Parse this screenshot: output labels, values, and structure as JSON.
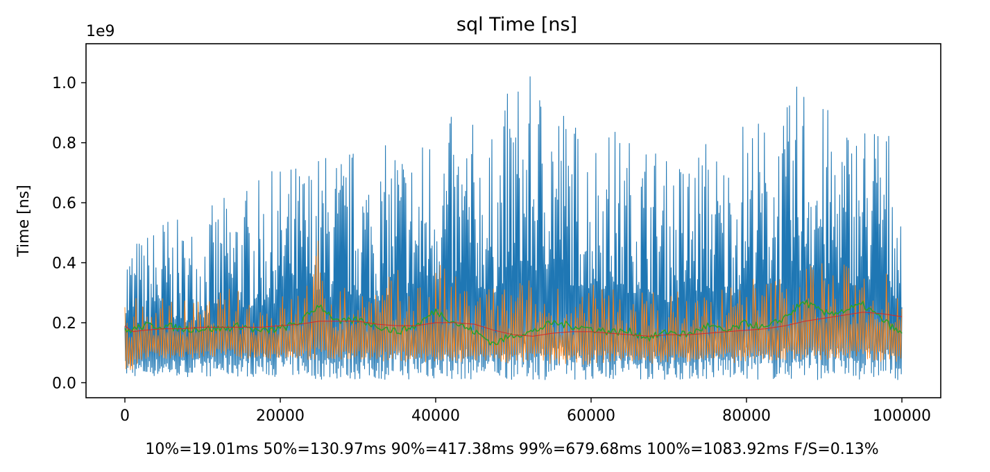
{
  "chart_data": {
    "type": "line",
    "title": "sql Time [ns]",
    "ylabel": "Time [ns]",
    "xlabel": "10%=19.01ms 50%=130.97ms 90%=417.38ms 99%=679.68ms 100%=1083.92ms F/S=0.13%",
    "y_offset_label": "1e9",
    "xlim": [
      -5000,
      105000
    ],
    "ylim": [
      -0.05,
      1.13
    ],
    "x_ticks": [
      0,
      20000,
      40000,
      60000,
      80000,
      100000
    ],
    "x_tick_labels": [
      "0",
      "20000",
      "40000",
      "60000",
      "80000",
      "100000"
    ],
    "y_ticks": [
      0.0,
      0.2,
      0.4,
      0.6,
      0.8,
      1.0
    ],
    "y_tick_labels": [
      "0.0",
      "0.2",
      "0.4",
      "0.6",
      "0.8",
      "1.0"
    ],
    "grid": false,
    "legend": "none",
    "series": [
      {
        "color": "#1f77b4",
        "x": [
          0,
          2500,
          5000,
          7500,
          10000,
          12500,
          15000,
          17500,
          20000,
          22500,
          25000,
          27500,
          30000,
          32500,
          35000,
          37500,
          40000,
          42500,
          45000,
          47500,
          50000,
          52500,
          55000,
          57500,
          60000,
          62500,
          65000,
          67500,
          70000,
          72500,
          75000,
          77500,
          80000,
          82500,
          85000,
          87500,
          90000,
          92500,
          95000,
          97500,
          100000
        ],
        "low": [
          0.02,
          0.02,
          0.02,
          0.02,
          0.02,
          0.02,
          0.02,
          0.02,
          0.02,
          0.02,
          0.01,
          0.01,
          0.01,
          0.01,
          0.01,
          0.01,
          0.01,
          0.01,
          0.01,
          0.01,
          0.01,
          0.01,
          0.01,
          0.01,
          0.01,
          0.01,
          0.01,
          0.01,
          0.01,
          0.01,
          0.01,
          0.01,
          0.01,
          0.01,
          0.01,
          0.01,
          0.01,
          0.01,
          0.01,
          0.01,
          0.01
        ],
        "high": [
          0.5,
          0.5,
          0.58,
          0.53,
          0.57,
          0.62,
          0.66,
          0.68,
          0.73,
          0.75,
          0.78,
          0.79,
          0.8,
          0.75,
          0.86,
          0.79,
          0.93,
          0.88,
          0.88,
          0.82,
          1.05,
          1.02,
          1.05,
          0.9,
          0.86,
          0.87,
          0.83,
          0.84,
          0.74,
          0.79,
          0.84,
          0.77,
          0.93,
          0.88,
          0.91,
          1.08,
          0.93,
          0.9,
          0.91,
          0.94,
          0.7
        ]
      },
      {
        "color": "#ff7f0e",
        "x": [
          0,
          2500,
          5000,
          7500,
          10000,
          12500,
          15000,
          17500,
          20000,
          22500,
          25000,
          27500,
          30000,
          32500,
          35000,
          37500,
          40000,
          42500,
          45000,
          47500,
          50000,
          52500,
          55000,
          57500,
          60000,
          62500,
          65000,
          67500,
          70000,
          72500,
          75000,
          77500,
          80000,
          82500,
          85000,
          87500,
          90000,
          92500,
          95000,
          97500,
          100000
        ],
        "low": [
          0.02,
          0.08,
          0.08,
          0.08,
          0.08,
          0.09,
          0.08,
          0.08,
          0.08,
          0.08,
          0.07,
          0.07,
          0.08,
          0.07,
          0.07,
          0.07,
          0.06,
          0.06,
          0.07,
          0.07,
          0.06,
          0.07,
          0.06,
          0.06,
          0.06,
          0.07,
          0.07,
          0.06,
          0.07,
          0.07,
          0.07,
          0.07,
          0.06,
          0.07,
          0.07,
          0.08,
          0.07,
          0.07,
          0.07,
          0.07,
          0.07
        ],
        "high": [
          0.26,
          0.3,
          0.3,
          0.28,
          0.28,
          0.32,
          0.31,
          0.3,
          0.3,
          0.33,
          0.5,
          0.34,
          0.35,
          0.34,
          0.38,
          0.36,
          0.42,
          0.36,
          0.34,
          0.33,
          0.36,
          0.35,
          0.36,
          0.32,
          0.33,
          0.34,
          0.33,
          0.32,
          0.3,
          0.33,
          0.32,
          0.34,
          0.38,
          0.35,
          0.38,
          0.42,
          0.44,
          0.4,
          0.43,
          0.44,
          0.4
        ]
      },
      {
        "color": "#2ca02c",
        "x": [
          0,
          2500,
          5000,
          7500,
          10000,
          12500,
          15000,
          17500,
          20000,
          22500,
          25000,
          27500,
          30000,
          32500,
          35000,
          37500,
          40000,
          42500,
          45000,
          47500,
          50000,
          52500,
          55000,
          57500,
          60000,
          62500,
          65000,
          67500,
          70000,
          72500,
          75000,
          77500,
          80000,
          82500,
          85000,
          87500,
          90000,
          92500,
          95000,
          97500,
          100000
        ],
        "y": [
          0.17,
          0.19,
          0.19,
          0.18,
          0.18,
          0.18,
          0.19,
          0.17,
          0.18,
          0.2,
          0.26,
          0.2,
          0.21,
          0.19,
          0.17,
          0.19,
          0.24,
          0.2,
          0.17,
          0.13,
          0.16,
          0.17,
          0.2,
          0.19,
          0.18,
          0.17,
          0.17,
          0.15,
          0.17,
          0.16,
          0.19,
          0.17,
          0.2,
          0.18,
          0.22,
          0.27,
          0.23,
          0.24,
          0.26,
          0.21,
          0.16
        ]
      },
      {
        "color": "#d62728",
        "x": [
          0,
          1000,
          2500,
          5000,
          7500,
          10000,
          12500,
          15000,
          17500,
          20000,
          22500,
          25000,
          27500,
          30000,
          32500,
          35000,
          37500,
          40000,
          42500,
          45000,
          47500,
          50000,
          52500,
          55000,
          57500,
          60000,
          62500,
          65000,
          67500,
          70000,
          72500,
          75000,
          77500,
          80000,
          82500,
          85000,
          87500,
          90000,
          92500,
          95000,
          97500,
          100000
        ],
        "y": [
          0.19,
          0.17,
          0.175,
          0.18,
          0.18,
          0.185,
          0.185,
          0.185,
          0.185,
          0.19,
          0.195,
          0.205,
          0.205,
          0.205,
          0.195,
          0.19,
          0.19,
          0.2,
          0.2,
          0.195,
          0.175,
          0.16,
          0.155,
          0.165,
          0.17,
          0.17,
          0.165,
          0.16,
          0.155,
          0.16,
          0.16,
          0.165,
          0.17,
          0.175,
          0.18,
          0.19,
          0.205,
          0.215,
          0.225,
          0.235,
          0.23,
          0.22
        ]
      }
    ]
  }
}
